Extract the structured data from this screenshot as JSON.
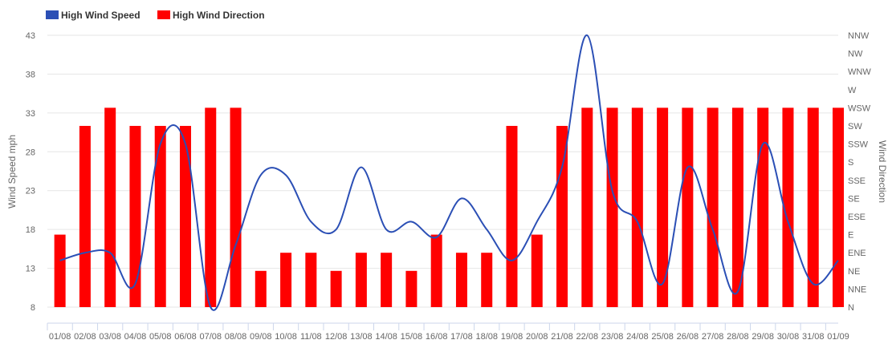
{
  "legend": {
    "speed_label": "High Wind Speed",
    "direction_label": "High Wind Direction"
  },
  "colors": {
    "speed": "#2b4fb5",
    "direction": "#ff0000",
    "grid": "#e6e6e6"
  },
  "chart_data": {
    "type": "bar",
    "categories": [
      "01/08",
      "02/08",
      "03/08",
      "04/08",
      "05/08",
      "06/08",
      "07/08",
      "08/08",
      "09/08",
      "10/08",
      "11/08",
      "12/08",
      "13/08",
      "14/08",
      "15/08",
      "16/08",
      "17/08",
      "18/08",
      "19/08",
      "20/08",
      "21/08",
      "22/08",
      "23/08",
      "24/08",
      "25/08",
      "26/08",
      "27/08",
      "28/08",
      "29/08",
      "30/08",
      "31/08",
      "01/09"
    ],
    "ylabel": "Wind Speed mph",
    "ylabel_right": "Wind Direction",
    "ylim": [
      8,
      43
    ],
    "yticks": [
      8,
      13,
      18,
      23,
      28,
      33,
      38,
      43
    ],
    "direction_ticks": [
      "N",
      "NNE",
      "NE",
      "ENE",
      "E",
      "ESE",
      "SE",
      "SSE",
      "S",
      "SSW",
      "SW",
      "WSW",
      "W",
      "WNW",
      "NW",
      "NNW"
    ],
    "grid": true,
    "legend_position": "top-left",
    "series": [
      {
        "name": "High Wind Speed",
        "type": "line",
        "smooth": true,
        "values": [
          14,
          15,
          15,
          11,
          29,
          29,
          8,
          16,
          25,
          25,
          19,
          18,
          26,
          18,
          19,
          17,
          22,
          18,
          14,
          19,
          26,
          43,
          23,
          19,
          11,
          26,
          18,
          10,
          29,
          19,
          11,
          14
        ]
      },
      {
        "name": "High Wind Direction",
        "type": "bar",
        "axis": "right",
        "values": [
          "E",
          "SW",
          "WSW",
          "SW",
          "SW",
          "SW",
          "WSW",
          "WSW",
          "NE",
          "ENE",
          "ENE",
          "NE",
          "ENE",
          "ENE",
          "NE",
          "E",
          "ENE",
          "ENE",
          "SW",
          "E",
          "SW",
          "WSW",
          "WSW",
          "WSW",
          "WSW",
          "WSW",
          "WSW",
          "WSW",
          "WSW",
          "WSW",
          "WSW",
          "WSW"
        ]
      }
    ]
  }
}
